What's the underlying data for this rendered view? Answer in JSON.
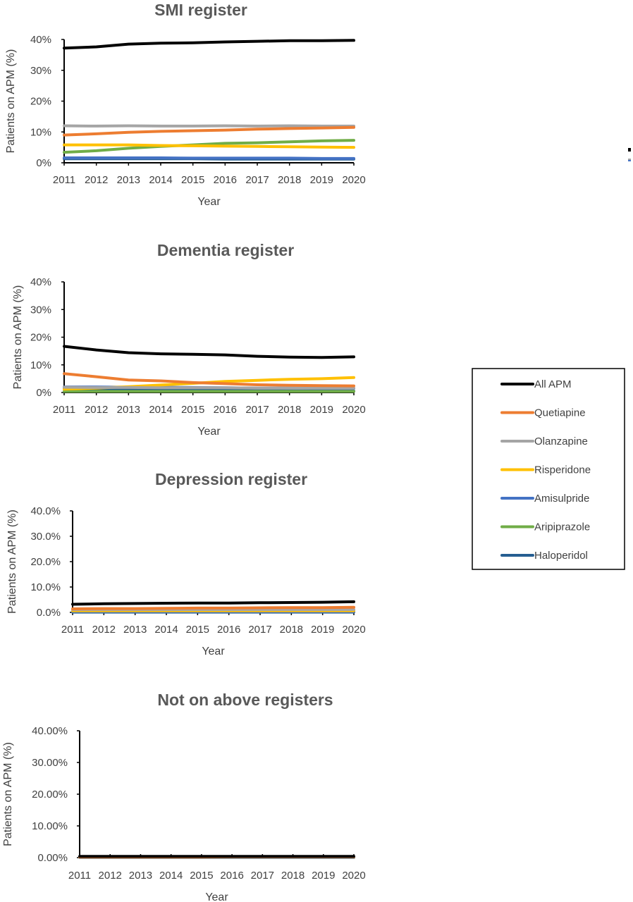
{
  "chart_data": [
    {
      "type": "line",
      "title": "SMI register",
      "xlabel": "Year",
      "ylabel": "Patients  on APM (%)",
      "x": [
        2011,
        2012,
        2013,
        2014,
        2015,
        2016,
        2017,
        2018,
        2019,
        2020
      ],
      "ylim": [
        0,
        40
      ],
      "yticks": [
        "0%",
        "10%",
        "20%",
        "30%",
        "40%"
      ],
      "series": [
        {
          "name": "All APM",
          "values": [
            37.2,
            37.6,
            38.5,
            38.8,
            38.9,
            39.2,
            39.4,
            39.6,
            39.6,
            39.7
          ]
        },
        {
          "name": "Quetiapine",
          "values": [
            9.0,
            9.4,
            9.9,
            10.2,
            10.4,
            10.6,
            10.9,
            11.1,
            11.3,
            11.5
          ]
        },
        {
          "name": "Olanzapine",
          "values": [
            12.0,
            11.9,
            12.0,
            11.9,
            11.9,
            12.0,
            11.9,
            12.0,
            11.9,
            11.9
          ]
        },
        {
          "name": "Risperidone",
          "values": [
            5.8,
            5.8,
            5.8,
            5.6,
            5.5,
            5.4,
            5.3,
            5.2,
            5.1,
            5.0
          ]
        },
        {
          "name": "Amisulpride",
          "values": [
            1.6,
            1.6,
            1.6,
            1.6,
            1.5,
            1.5,
            1.5,
            1.5,
            1.4,
            1.4
          ]
        },
        {
          "name": "Aripiprazole",
          "values": [
            3.4,
            3.9,
            4.7,
            5.3,
            5.8,
            6.3,
            6.5,
            6.8,
            7.1,
            7.3
          ]
        },
        {
          "name": "Haloperidol",
          "values": [
            1.3,
            1.3,
            1.3,
            1.3,
            1.3,
            1.2,
            1.2,
            1.2,
            1.2,
            1.2
          ]
        }
      ]
    },
    {
      "type": "line",
      "title": "Dementia register",
      "xlabel": "Year",
      "ylabel": "Patients  on APM (%)",
      "x": [
        2011,
        2012,
        2013,
        2014,
        2015,
        2016,
        2017,
        2018,
        2019,
        2020
      ],
      "ylim": [
        0,
        40
      ],
      "yticks": [
        "0%",
        "10%",
        "20%",
        "30%",
        "40%"
      ],
      "series": [
        {
          "name": "All APM",
          "values": [
            16.7,
            15.4,
            14.4,
            14.0,
            13.8,
            13.6,
            13.1,
            12.8,
            12.7,
            12.9
          ]
        },
        {
          "name": "Quetiapine",
          "values": [
            6.8,
            5.7,
            4.5,
            4.2,
            3.6,
            3.2,
            2.8,
            2.6,
            2.5,
            2.4
          ]
        },
        {
          "name": "Olanzapine",
          "values": [
            1.9,
            1.8,
            1.8,
            1.7,
            1.7,
            1.7,
            1.6,
            1.6,
            1.6,
            1.6
          ]
        },
        {
          "name": "Risperidone",
          "values": [
            1.2,
            1.6,
            2.1,
            2.7,
            3.3,
            4.0,
            4.4,
            4.8,
            5.0,
            5.4
          ]
        },
        {
          "name": "Amisulpride",
          "values": [
            2.0,
            2.0,
            1.9,
            1.9,
            1.8,
            1.7,
            1.6,
            1.6,
            1.5,
            1.5
          ]
        },
        {
          "name": "Aripiprazole",
          "values": [
            0.4,
            0.4,
            0.4,
            0.4,
            0.4,
            0.4,
            0.4,
            0.4,
            0.4,
            0.4
          ]
        },
        {
          "name": "Haloperidol",
          "values": [
            1.4,
            1.3,
            1.2,
            1.0,
            0.9,
            0.8,
            0.7,
            0.6,
            0.5,
            0.5
          ]
        }
      ]
    },
    {
      "type": "line",
      "title": "Depression register",
      "xlabel": "Year",
      "ylabel": "Patients  on APM (%)",
      "x": [
        2011,
        2012,
        2013,
        2014,
        2015,
        2016,
        2017,
        2018,
        2019,
        2020
      ],
      "ylim": [
        0,
        40
      ],
      "yticks": [
        "0.0%",
        "10.0%",
        "20.0%",
        "30.0%",
        "40.0%"
      ],
      "series": [
        {
          "name": "All APM",
          "values": [
            3.2,
            3.4,
            3.5,
            3.6,
            3.7,
            3.7,
            3.8,
            3.9,
            4.0,
            4.2
          ]
        },
        {
          "name": "Quetiapine",
          "values": [
            1.4,
            1.5,
            1.5,
            1.6,
            1.7,
            1.7,
            1.8,
            1.9,
            1.9,
            2.0
          ]
        },
        {
          "name": "Olanzapine",
          "values": [
            1.1,
            1.1,
            1.1,
            1.1,
            1.1,
            1.1,
            1.1,
            1.1,
            1.1,
            1.1
          ]
        },
        {
          "name": "Risperidone",
          "values": [
            0.6,
            0.6,
            0.6,
            0.6,
            0.6,
            0.6,
            0.6,
            0.6,
            0.6,
            0.6
          ]
        },
        {
          "name": "Amisulpride",
          "values": [
            0.3,
            0.3,
            0.3,
            0.3,
            0.3,
            0.3,
            0.3,
            0.3,
            0.3,
            0.3
          ]
        },
        {
          "name": "Aripiprazole",
          "values": [
            0.3,
            0.3,
            0.4,
            0.4,
            0.4,
            0.4,
            0.4,
            0.5,
            0.5,
            0.5
          ]
        },
        {
          "name": "Haloperidol",
          "values": [
            0.1,
            0.1,
            0.1,
            0.1,
            0.1,
            0.1,
            0.1,
            0.1,
            0.1,
            0.1
          ]
        }
      ]
    },
    {
      "type": "line",
      "title": "Not on above registers",
      "xlabel": "Year",
      "ylabel": "Patients  on APM (%)",
      "x": [
        2011,
        2012,
        2013,
        2014,
        2015,
        2016,
        2017,
        2018,
        2019,
        2020
      ],
      "ylim": [
        0,
        40
      ],
      "yticks": [
        "0.00%",
        "10.00%",
        "20.00%",
        "30.00%",
        "40.00%"
      ],
      "series": [
        {
          "name": "All APM",
          "values": [
            0.4,
            0.4,
            0.4,
            0.4,
            0.4,
            0.4,
            0.4,
            0.4,
            0.4,
            0.4
          ]
        },
        {
          "name": "Quetiapine",
          "values": [
            0.2,
            0.2,
            0.2,
            0.2,
            0.2,
            0.3,
            0.3,
            0.3,
            0.3,
            0.3
          ]
        },
        {
          "name": "Olanzapine",
          "values": [
            0.1,
            0.1,
            0.1,
            0.1,
            0.1,
            0.1,
            0.1,
            0.1,
            0.1,
            0.1
          ]
        },
        {
          "name": "Risperidone",
          "values": [
            0.1,
            0.1,
            0.1,
            0.1,
            0.1,
            0.1,
            0.1,
            0.1,
            0.1,
            0.1
          ]
        },
        {
          "name": "Amisulpride",
          "values": [
            0.05,
            0.05,
            0.05,
            0.05,
            0.05,
            0.05,
            0.05,
            0.05,
            0.05,
            0.05
          ]
        },
        {
          "name": "Aripiprazole",
          "values": [
            0.05,
            0.05,
            0.05,
            0.05,
            0.05,
            0.05,
            0.05,
            0.05,
            0.05,
            0.05
          ]
        },
        {
          "name": "Haloperidol",
          "values": [
            0.02,
            0.02,
            0.02,
            0.02,
            0.02,
            0.02,
            0.02,
            0.02,
            0.02,
            0.02
          ]
        }
      ]
    }
  ],
  "legend": {
    "placement": "right",
    "entries": [
      {
        "name": "All APM",
        "color": "#000000"
      },
      {
        "name": "Quetiapine",
        "color": "#ED7D31"
      },
      {
        "name": "Olanzapine",
        "color": "#A5A5A5"
      },
      {
        "name": "Risperidone",
        "color": "#FFC000"
      },
      {
        "name": "Amisulpride",
        "color": "#4472C4"
      },
      {
        "name": "Aripiprazole",
        "color": "#70AD47"
      },
      {
        "name": "Haloperidol",
        "color": "#255E91"
      }
    ]
  }
}
